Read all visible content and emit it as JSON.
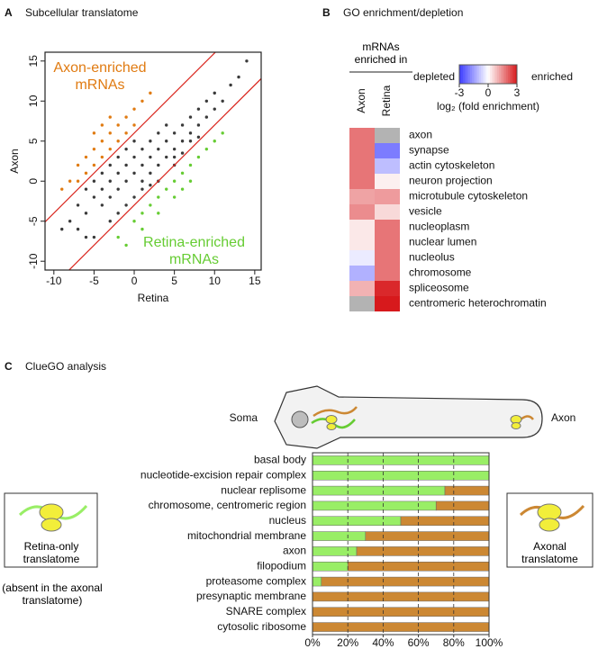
{
  "chart_data": [
    {
      "type": "scatter",
      "panel": "A",
      "title": "Subcellular translatome",
      "xlabel": "Retina",
      "ylabel": "Axon",
      "xlim": [
        -11.1,
        15.8
      ],
      "ylim": [
        -11.1,
        16.1
      ],
      "xticks": [
        -10,
        -5,
        0,
        5,
        10,
        15
      ],
      "yticks": [
        -10,
        -5,
        0,
        5,
        10,
        15
      ],
      "series": [
        {
          "color": "#3a3a3a",
          "x": [
            -8,
            -7,
            -6,
            -6,
            -5,
            -5,
            -4,
            -4,
            -4,
            -3,
            -3,
            -3,
            -2,
            -2,
            -2,
            -1,
            -1,
            -1,
            0,
            0,
            0,
            0,
            1,
            1,
            1,
            2,
            2,
            2,
            3,
            3,
            3,
            4,
            4,
            4,
            5,
            5,
            5,
            6,
            6,
            7,
            7,
            7,
            8,
            8,
            9,
            9,
            10,
            10,
            11,
            12,
            13,
            14,
            -9,
            -7,
            -5,
            -3,
            -1,
            1,
            3,
            5,
            -2,
            2,
            6,
            8,
            -6
          ],
          "values": [
            -5,
            -3,
            -4,
            -1,
            -2,
            0,
            -3,
            1,
            -1,
            0,
            2,
            -2,
            1,
            3,
            -1,
            0,
            2,
            4,
            1,
            3,
            -2,
            5,
            2,
            4,
            0,
            3,
            5,
            1,
            4,
            2,
            6,
            3,
            5,
            7,
            4,
            6,
            3,
            5,
            7,
            6,
            8,
            5,
            7,
            9,
            8,
            10,
            9,
            11,
            10,
            12,
            13,
            15,
            -6,
            -6,
            -7,
            -5,
            -3,
            -1,
            0,
            2,
            -4,
            -0.5,
            3.5,
            5.5,
            -7
          ]
        },
        {
          "color": "#e07b12",
          "x": [
            -8,
            -7,
            -6,
            -6,
            -5,
            -5,
            -4,
            -4,
            -3,
            -3,
            -2,
            -2,
            -1,
            -1,
            0,
            0,
            1,
            -7,
            -4,
            -9,
            2,
            -5,
            -3
          ],
          "values": [
            0,
            2,
            3,
            1,
            4,
            2,
            5,
            3,
            6,
            4,
            7,
            5,
            8,
            6,
            9,
            7,
            10,
            0,
            7,
            -1,
            11,
            6,
            8
          ]
        },
        {
          "color": "#66cc33",
          "x": [
            -2,
            0,
            1,
            2,
            3,
            4,
            5,
            6,
            7,
            8,
            9,
            10,
            3,
            5,
            7,
            1,
            11,
            6,
            -1
          ],
          "values": [
            -7,
            -5,
            -4,
            -3,
            -2,
            -1,
            0,
            1,
            2,
            3,
            4,
            5,
            -4,
            -2,
            0,
            -6,
            6,
            -1,
            -8
          ]
        }
      ],
      "reference_lines": [
        {
          "slope": 1,
          "intercept": 6,
          "color": "#d9241c"
        },
        {
          "slope": 1,
          "intercept": -3,
          "color": "#d9241c"
        }
      ],
      "annotations": [
        {
          "text": "Axon-enriched mRNAs",
          "color": "#e07b12"
        },
        {
          "text": "Retina-enriched mRNAs",
          "color": "#66cc33"
        }
      ]
    },
    {
      "type": "heatmap",
      "panel": "B",
      "title": "GO enrichment/depletion",
      "header": "mRNAs enriched in",
      "columns": [
        {
          "name": "Axon",
          "color": "#cc7a1f"
        },
        {
          "name": "Retina",
          "color": "#66cc33"
        }
      ],
      "rows": [
        "axon",
        "synapse",
        "actin cytoskeleton",
        "neuron projection",
        "microtubule cytoskeleton",
        "vesicle",
        "nucleoplasm",
        "nuclear lumen",
        "nucleolus",
        "chromosome",
        "spliceosome",
        "centromeric heterochromatin"
      ],
      "values": [
        [
          1.8,
          null
        ],
        [
          1.8,
          -2.0
        ],
        [
          1.8,
          -1.0
        ],
        [
          1.8,
          0.2
        ],
        [
          1.2,
          1.3
        ],
        [
          1.5,
          0.5
        ],
        [
          0.3,
          1.8
        ],
        [
          0.3,
          1.8
        ],
        [
          -0.3,
          1.8
        ],
        [
          -1.2,
          1.8
        ],
        [
          1.0,
          2.8
        ],
        [
          null,
          3.0
        ]
      ],
      "colormap": {
        "low": "#3b3bff",
        "mid": "#ffffff",
        "high": "#d7191c",
        "na": "#b3b3b3"
      },
      "colorbar": {
        "low_label": "depleted",
        "high_label": "enriched",
        "lim": [
          -3,
          3
        ],
        "ticks": [
          -3,
          0,
          3
        ],
        "title": "log₂ (fold enrichment)"
      }
    },
    {
      "type": "bar",
      "panel": "C",
      "title": "ClueGO analysis",
      "orientation": "horizontal",
      "stacked": true,
      "categories": [
        "basal body",
        "nucleotide-excision repair complex",
        "nuclear replisome",
        "chromosome, centromeric region",
        "nucleus",
        "mitochondrial membrane",
        "axon",
        "filopodium",
        "proteasome complex",
        "presynaptic membrane",
        "SNARE complex",
        "cytosolic ribosome"
      ],
      "series": [
        {
          "name": "Retina-only translatome",
          "color": "#99ee66",
          "values": [
            100,
            100,
            75,
            70,
            50,
            30,
            25,
            20,
            5,
            0,
            0,
            0
          ]
        },
        {
          "name": "Axonal translatome",
          "color": "#cc8833",
          "values": [
            0,
            0,
            25,
            30,
            50,
            70,
            75,
            80,
            95,
            100,
            100,
            100
          ]
        }
      ],
      "xlim": [
        0,
        100
      ],
      "xticks": [
        {
          "value": 0,
          "label": "0%"
        },
        {
          "value": 20,
          "label": "20%"
        },
        {
          "value": 40,
          "label": "40%"
        },
        {
          "value": 60,
          "label": "60%"
        },
        {
          "value": 80,
          "label": "80%"
        },
        {
          "value": 100,
          "label": "100%"
        }
      ],
      "grid": true,
      "note": "(absent in the axonal translatome)",
      "diagram_labels": [
        "Soma",
        "Axon"
      ]
    }
  ]
}
